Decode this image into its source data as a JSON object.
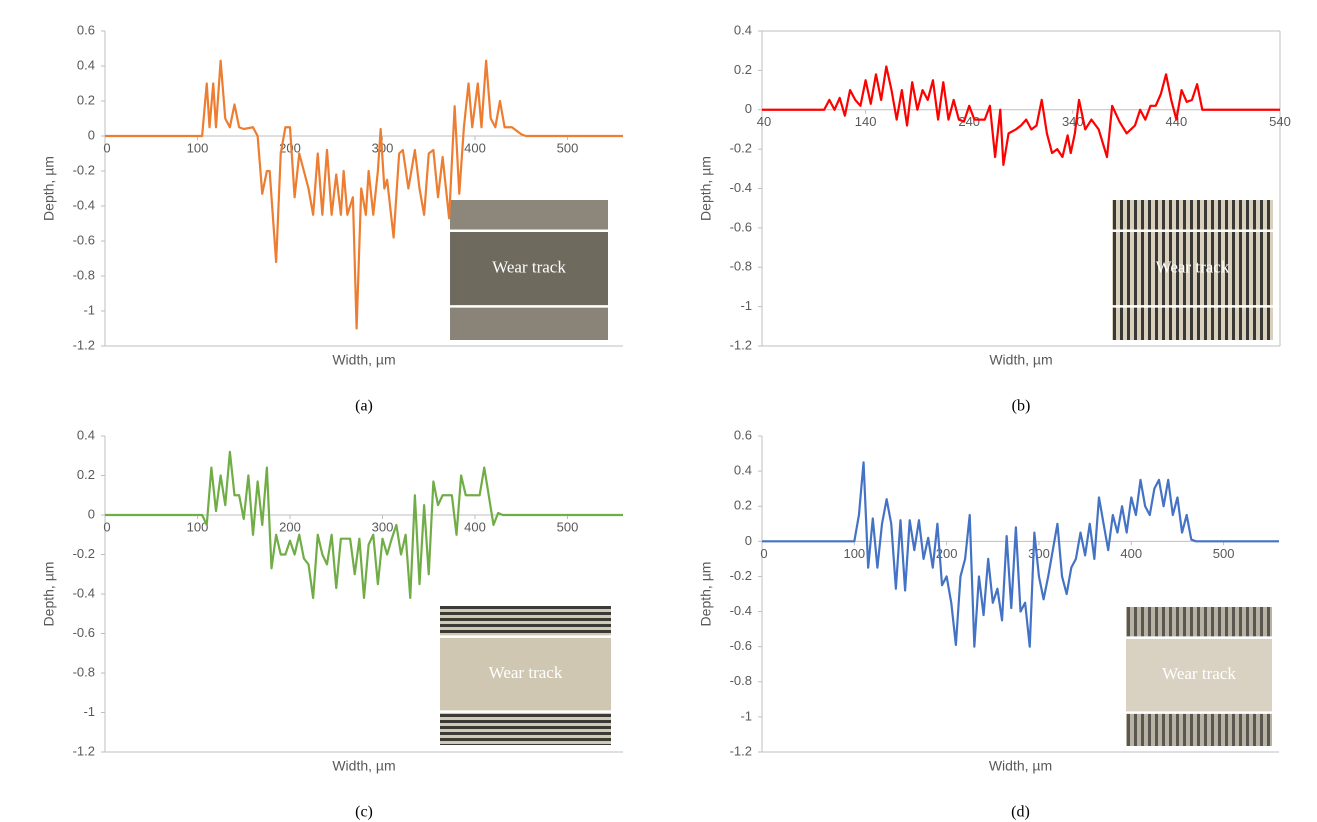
{
  "chart_data": [
    {
      "type": "line",
      "caption": "(a)",
      "x_label": "Width, µm",
      "y_label": "Depth, µm",
      "annotation": "Wear track",
      "color": "#ed7d31",
      "xlim": [
        0,
        560
      ],
      "xticks": [
        0,
        100,
        200,
        300,
        400,
        500
      ],
      "ylim": [
        -1.2,
        0.6
      ],
      "yticks": [
        0.6,
        0.4,
        0.2,
        0,
        -0.2,
        -0.4,
        -0.6,
        -0.8,
        -1,
        -1.2
      ],
      "x": [
        0,
        100,
        105,
        110,
        113,
        117,
        120,
        125,
        130,
        135,
        140,
        145,
        150,
        160,
        165,
        170,
        175,
        178,
        185,
        190,
        195,
        200,
        205,
        210,
        215,
        220,
        225,
        230,
        235,
        240,
        245,
        250,
        255,
        258,
        262,
        268,
        272,
        277,
        282,
        285,
        290,
        295,
        298,
        302,
        305,
        312,
        318,
        322,
        328,
        335,
        340,
        345,
        350,
        355,
        360,
        365,
        372,
        378,
        383,
        388,
        393,
        397,
        403,
        407,
        412,
        417,
        422,
        427,
        432,
        440,
        450,
        455,
        560
      ],
      "values": [
        0,
        0,
        0,
        0.3,
        0.05,
        0.3,
        0.05,
        0.43,
        0.1,
        0.05,
        0.18,
        0.05,
        0.04,
        0.05,
        0,
        -0.33,
        -0.2,
        -0.2,
        -0.72,
        -0.1,
        0.05,
        0.05,
        -0.35,
        -0.1,
        -0.2,
        -0.3,
        -0.45,
        -0.1,
        -0.45,
        -0.08,
        -0.45,
        -0.22,
        -0.45,
        -0.2,
        -0.45,
        -0.35,
        -1.1,
        -0.3,
        -0.45,
        -0.2,
        -0.45,
        -0.2,
        0.04,
        -0.3,
        -0.25,
        -0.58,
        -0.1,
        -0.08,
        -0.3,
        -0.08,
        -0.3,
        -0.45,
        -0.1,
        -0.08,
        -0.35,
        -0.12,
        -0.47,
        0.17,
        -0.33,
        0.05,
        0.3,
        0.05,
        0.3,
        0.05,
        0.43,
        0.1,
        0.05,
        0.2,
        0.05,
        0.05,
        0.01,
        0,
        0
      ]
    },
    {
      "type": "line",
      "caption": "(b)",
      "x_label": "Width, µm",
      "y_label": "Depth, µm",
      "annotation": "Wear track",
      "color": "#ff0000",
      "xlim": [
        40,
        540
      ],
      "xticks": [
        40,
        140,
        240,
        340,
        440,
        540
      ],
      "ylim": [
        -1.2,
        0.4
      ],
      "yticks": [
        0.4,
        0.2,
        0,
        -0.2,
        -0.4,
        -0.6,
        -0.8,
        -1,
        -1.2
      ],
      "x": [
        40,
        100,
        105,
        110,
        115,
        120,
        125,
        130,
        135,
        140,
        145,
        150,
        155,
        160,
        165,
        170,
        175,
        180,
        185,
        190,
        195,
        200,
        205,
        210,
        215,
        220,
        225,
        230,
        235,
        240,
        245,
        250,
        255,
        260,
        265,
        270,
        273,
        278,
        285,
        290,
        295,
        300,
        305,
        310,
        315,
        320,
        325,
        330,
        335,
        338,
        342,
        346,
        352,
        358,
        365,
        373,
        378,
        385,
        392,
        400,
        405,
        410,
        415,
        420,
        425,
        430,
        435,
        440,
        445,
        450,
        455,
        460,
        465,
        540
      ],
      "values": [
        0,
        0,
        0.05,
        0,
        0.06,
        -0.03,
        0.1,
        0.05,
        0.02,
        0.15,
        0.03,
        0.18,
        0.05,
        0.22,
        0.1,
        -0.05,
        0.1,
        -0.08,
        0.14,
        0,
        0.1,
        0.05,
        0.15,
        -0.05,
        0.14,
        -0.05,
        0.05,
        -0.05,
        -0.06,
        0.02,
        -0.05,
        -0.05,
        -0.05,
        0.02,
        -0.24,
        0,
        -0.28,
        -0.12,
        -0.1,
        -0.08,
        -0.05,
        -0.1,
        -0.08,
        0.05,
        -0.12,
        -0.22,
        -0.2,
        -0.24,
        -0.13,
        -0.22,
        -0.12,
        0.05,
        -0.1,
        -0.05,
        -0.1,
        -0.24,
        0.02,
        -0.06,
        -0.12,
        -0.08,
        0,
        -0.05,
        0.02,
        0.02,
        0.08,
        0.18,
        0.05,
        -0.05,
        0.1,
        0.04,
        0.05,
        0.13,
        0,
        0
      ]
    },
    {
      "type": "line",
      "caption": "(c)",
      "x_label": "Width, µm",
      "y_label": "Depth, µm",
      "annotation": "Wear track",
      "color": "#70ad47",
      "xlim": [
        0,
        560
      ],
      "xticks": [
        0,
        100,
        200,
        300,
        400,
        500
      ],
      "ylim": [
        -1.2,
        0.4
      ],
      "yticks": [
        0.4,
        0.2,
        0,
        -0.2,
        -0.4,
        -0.6,
        -0.8,
        -1,
        -1.2
      ],
      "x": [
        0,
        100,
        105,
        110,
        115,
        120,
        125,
        130,
        135,
        140,
        145,
        150,
        155,
        160,
        165,
        170,
        175,
        180,
        185,
        190,
        195,
        200,
        205,
        210,
        215,
        220,
        225,
        230,
        235,
        240,
        245,
        250,
        255,
        260,
        265,
        270,
        275,
        280,
        285,
        290,
        295,
        300,
        305,
        310,
        315,
        320,
        325,
        330,
        335,
        340,
        345,
        350,
        355,
        360,
        365,
        370,
        375,
        380,
        385,
        390,
        395,
        400,
        405,
        410,
        420,
        425,
        430,
        435,
        560
      ],
      "values": [
        0,
        0,
        0,
        -0.05,
        0.24,
        0.02,
        0.2,
        0.05,
        0.32,
        0.1,
        0.1,
        -0.02,
        0.2,
        -0.1,
        0.17,
        -0.05,
        0.24,
        -0.27,
        -0.1,
        -0.2,
        -0.2,
        -0.13,
        -0.2,
        -0.1,
        -0.22,
        -0.25,
        -0.42,
        -0.1,
        -0.2,
        -0.25,
        -0.1,
        -0.37,
        -0.12,
        -0.12,
        -0.12,
        -0.3,
        -0.12,
        -0.42,
        -0.15,
        -0.1,
        -0.35,
        -0.12,
        -0.2,
        -0.12,
        -0.05,
        -0.2,
        -0.1,
        -0.42,
        0.1,
        -0.35,
        0.05,
        -0.3,
        0.17,
        0.05,
        0.1,
        0.1,
        0.1,
        -0.1,
        0.2,
        0.1,
        0.1,
        0.1,
        0.1,
        0.24,
        -0.05,
        0.01,
        0,
        0,
        0
      ]
    },
    {
      "type": "line",
      "caption": "(d)",
      "x_label": "Width, µm",
      "y_label": "Depth, µm",
      "annotation": "Wear track",
      "color": "#4472c4",
      "xlim": [
        0,
        560
      ],
      "xticks": [
        0,
        100,
        200,
        300,
        400,
        500
      ],
      "ylim": [
        -1.2,
        0.6
      ],
      "yticks": [
        0.6,
        0.4,
        0.2,
        0,
        -0.2,
        -0.4,
        -0.6,
        -0.8,
        -1,
        -1.2
      ],
      "x": [
        0,
        100,
        105,
        110,
        115,
        120,
        125,
        130,
        135,
        140,
        145,
        150,
        155,
        160,
        165,
        170,
        175,
        180,
        185,
        190,
        195,
        200,
        205,
        210,
        215,
        220,
        225,
        230,
        235,
        240,
        245,
        250,
        255,
        260,
        265,
        270,
        275,
        280,
        285,
        290,
        295,
        300,
        305,
        310,
        315,
        320,
        325,
        330,
        335,
        340,
        345,
        350,
        355,
        360,
        365,
        370,
        375,
        380,
        385,
        390,
        395,
        400,
        405,
        410,
        415,
        420,
        425,
        430,
        435,
        440,
        445,
        450,
        455,
        460,
        465,
        470,
        560
      ],
      "values": [
        0,
        0,
        0.15,
        0.45,
        -0.15,
        0.13,
        -0.15,
        0.1,
        0.24,
        0.1,
        -0.27,
        0.12,
        -0.28,
        0.12,
        -0.05,
        0.12,
        -0.1,
        0.02,
        -0.15,
        0.1,
        -0.25,
        -0.2,
        -0.35,
        -0.59,
        -0.2,
        -0.1,
        0.15,
        -0.6,
        -0.2,
        -0.42,
        -0.1,
        -0.35,
        -0.27,
        -0.45,
        0.03,
        -0.38,
        0.08,
        -0.4,
        -0.35,
        -0.6,
        0.05,
        -0.2,
        -0.33,
        -0.2,
        -0.05,
        0.1,
        -0.2,
        -0.3,
        -0.15,
        -0.1,
        0.05,
        -0.08,
        0.1,
        -0.1,
        0.25,
        0.1,
        -0.05,
        0.15,
        0.05,
        0.2,
        0.05,
        0.25,
        0.15,
        0.35,
        0.2,
        0.15,
        0.3,
        0.35,
        0.2,
        0.35,
        0.15,
        0.25,
        0.05,
        0.15,
        0.01,
        0,
        0
      ]
    }
  ]
}
